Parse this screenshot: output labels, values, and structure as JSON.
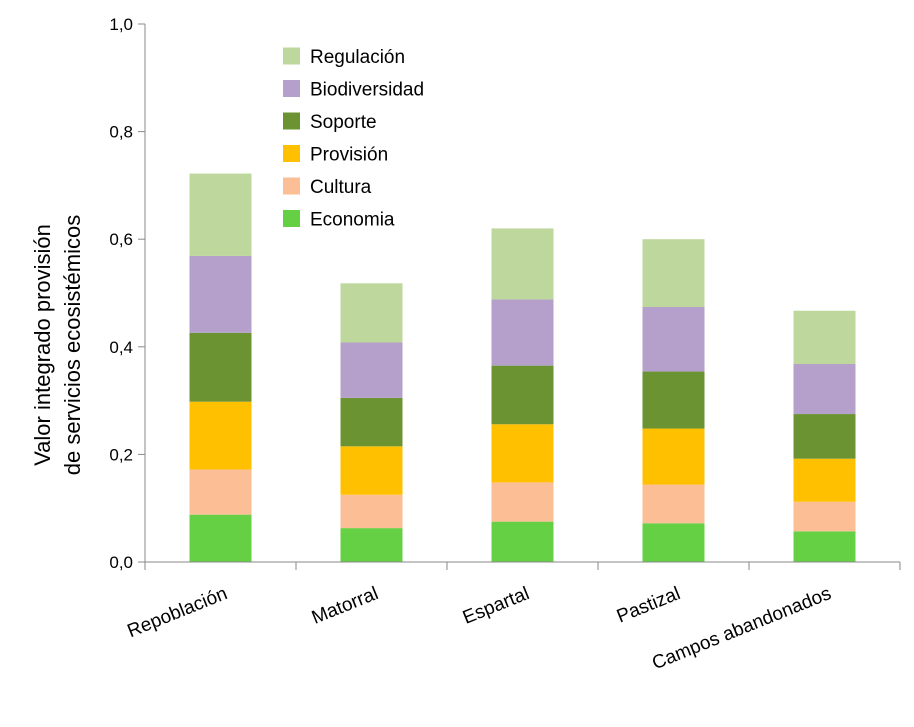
{
  "chart_data": {
    "type": "bar",
    "stacked": true,
    "categories": [
      "Repoblación",
      "Matorral",
      "Espartal",
      "Pastizal",
      "Campos abandonados"
    ],
    "series": [
      {
        "name": "Economia",
        "color": "#66d044",
        "values": [
          0.088,
          0.063,
          0.075,
          0.072,
          0.057
        ]
      },
      {
        "name": "Cultura",
        "color": "#fbbe95",
        "values": [
          0.084,
          0.062,
          0.073,
          0.072,
          0.055
        ]
      },
      {
        "name": "Provisión",
        "color": "#ffc000",
        "values": [
          0.126,
          0.09,
          0.108,
          0.104,
          0.08
        ]
      },
      {
        "name": "Soporte",
        "color": "#6b9332",
        "values": [
          0.128,
          0.09,
          0.109,
          0.106,
          0.083
        ]
      },
      {
        "name": "Biodiversidad",
        "color": "#b4a0ca",
        "values": [
          0.143,
          0.103,
          0.123,
          0.12,
          0.093
        ]
      },
      {
        "name": "Regulación",
        "color": "#bdd79c",
        "values": [
          0.153,
          0.11,
          0.132,
          0.126,
          0.099
        ]
      }
    ],
    "ylabel_lines": [
      "Valor integrado provisión",
      "de servicios ecosistémicos"
    ],
    "xlabel": "",
    "ylim": [
      0,
      1.0
    ],
    "yticks": [
      0,
      0.2,
      0.4,
      0.6,
      0.8,
      1.0
    ],
    "ytick_labels": [
      "0,0",
      "0,2",
      "0,4",
      "0,6",
      "0,8",
      "1,0"
    ],
    "legend_order": [
      "Regulación",
      "Biodiversidad",
      "Soporte",
      "Provisión",
      "Cultura",
      "Economia"
    ],
    "legend_position": "top-left",
    "grid": false
  }
}
